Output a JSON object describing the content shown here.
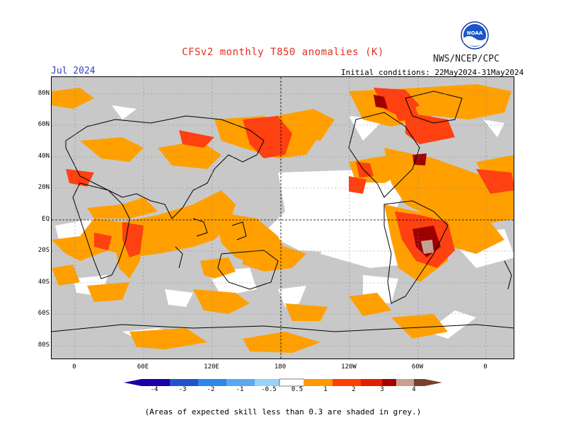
{
  "header": {
    "title": "CFSv2 monthly T850 anomalies (K)",
    "org": "NWS/NCEP/CPC",
    "logo_text": "NOAA",
    "month": "Jul 2024",
    "initial_conditions": "Initial conditions: 22May2024-31May2024"
  },
  "axes": {
    "lat_labels": [
      "80N",
      "60N",
      "40N",
      "20N",
      "EQ",
      "20S",
      "40S",
      "60S",
      "80S"
    ],
    "lon_labels": [
      "0",
      "60E",
      "120E",
      "180",
      "120W",
      "60W",
      "0"
    ]
  },
  "colorbar": {
    "labels": [
      "-4",
      "-3",
      "-2",
      "-1",
      "-0.5",
      "0.5",
      "1",
      "2",
      "3",
      "4"
    ],
    "colors": [
      "#1a00a8",
      "#1f55c8",
      "#2e86e8",
      "#5aa8f0",
      "#96d2fa",
      "#ffffff",
      "#ff9900",
      "#ff4000",
      "#e02000",
      "#a50000",
      "#c8a090",
      "#7a4030"
    ]
  },
  "footnote": "(Areas of expected skill less than 0.3 are shaded in grey.)",
  "colors": {
    "grey": "#c8c8c8",
    "orange": "#ffa000",
    "red_orange": "#ff4010",
    "dark_red": "#9e0000",
    "brown": "#c8a090",
    "title_red": "#e03020",
    "month_blue": "#3040c0"
  }
}
